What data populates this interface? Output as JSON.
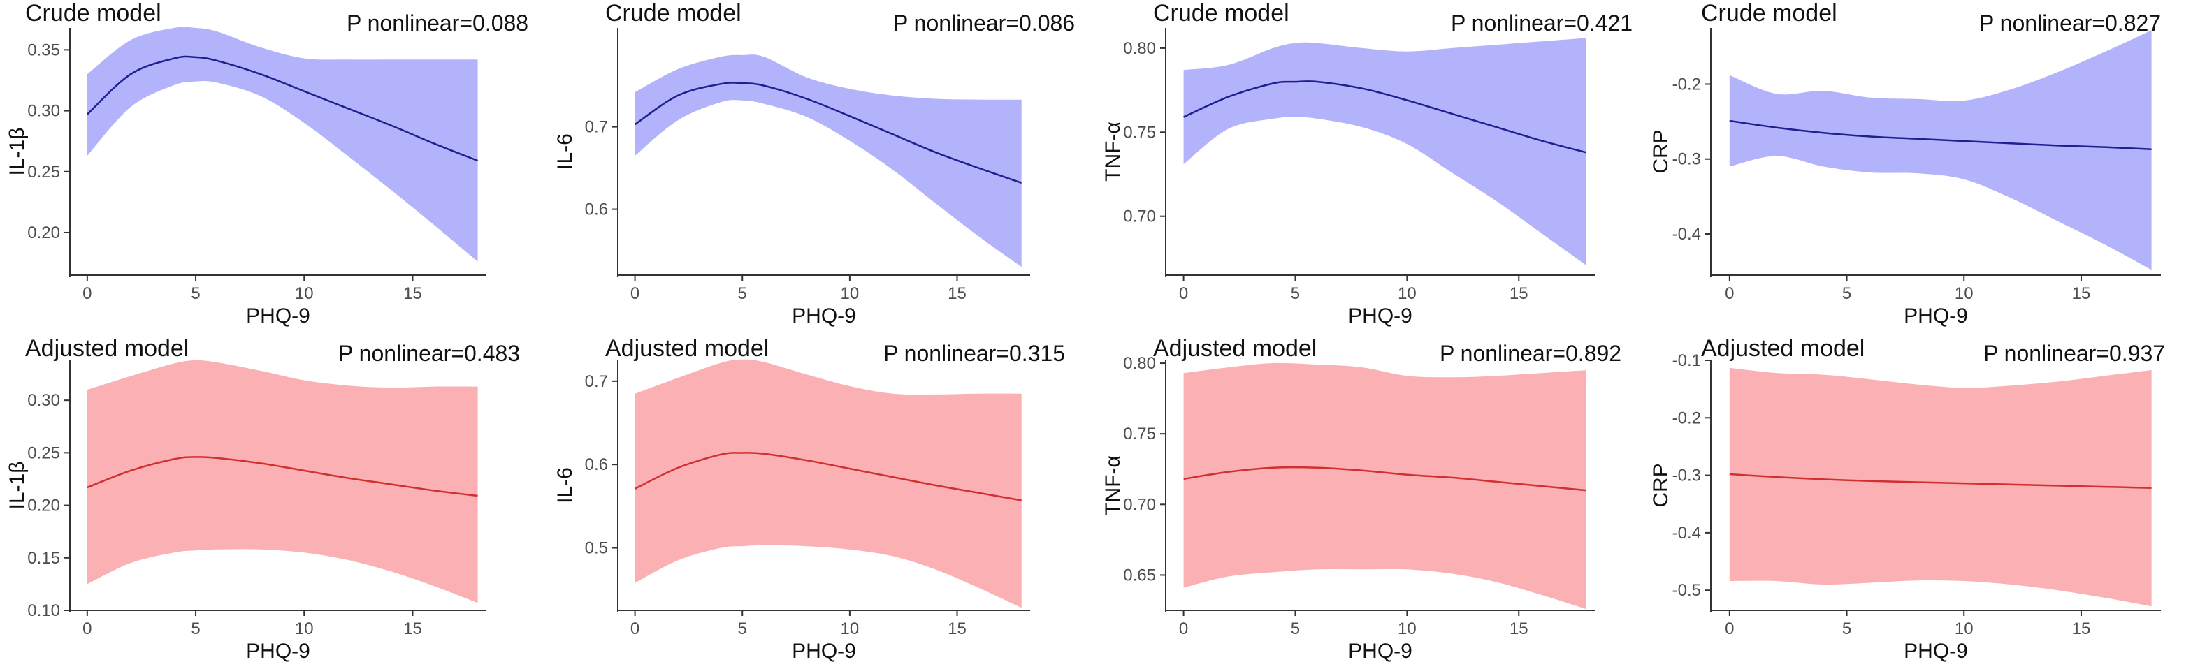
{
  "chart_data": [
    {
      "type": "line",
      "title": "Crude model",
      "annotation": "P nonlinear=0.088",
      "xlabel": "PHQ-9",
      "ylabel": "IL-1β",
      "xlim": [
        -0.8,
        18.4
      ],
      "ylim": [
        0.165,
        0.368
      ],
      "xticks": [
        0,
        5,
        10,
        15
      ],
      "xtick_labels": [
        "0",
        "5",
        "10",
        "15"
      ],
      "yticks": [
        0.2,
        0.25,
        0.3,
        0.35
      ],
      "ytick_labels": [
        "0.20",
        "0.25",
        "0.30",
        "0.35"
      ],
      "line_color": "#1f1f8f",
      "band_color": "#b3b3fb",
      "x": [
        0,
        2,
        4,
        5,
        6,
        8,
        10,
        12,
        14,
        16,
        18
      ],
      "y": [
        0.297,
        0.33,
        0.343,
        0.344,
        0.341,
        0.33,
        0.316,
        0.302,
        0.288,
        0.273,
        0.259
      ],
      "lower": [
        0.263,
        0.303,
        0.321,
        0.324,
        0.323,
        0.312,
        0.29,
        0.263,
        0.235,
        0.206,
        0.176
      ],
      "upper": [
        0.33,
        0.358,
        0.368,
        0.368,
        0.365,
        0.352,
        0.343,
        0.342,
        0.342,
        0.342,
        0.342
      ]
    },
    {
      "type": "line",
      "title": "Crude model",
      "annotation": "P nonlinear=0.086",
      "xlabel": "PHQ-9",
      "ylabel": "IL-6",
      "xlim": [
        -0.8,
        18.4
      ],
      "ylim": [
        0.52,
        0.82
      ],
      "xticks": [
        0,
        5,
        10,
        15
      ],
      "xtick_labels": [
        "0",
        "5",
        "10",
        "15"
      ],
      "yticks": [
        0.6,
        0.7
      ],
      "ytick_labels": [
        "0.6",
        "0.7"
      ],
      "line_color": "#1f1f8f",
      "band_color": "#b3b3fb",
      "x": [
        0,
        2,
        4,
        5,
        6,
        8,
        10,
        12,
        14,
        16,
        18
      ],
      "y": [
        0.703,
        0.738,
        0.752,
        0.753,
        0.75,
        0.734,
        0.713,
        0.691,
        0.669,
        0.65,
        0.632
      ],
      "lower": [
        0.665,
        0.708,
        0.73,
        0.732,
        0.728,
        0.712,
        0.683,
        0.648,
        0.607,
        0.567,
        0.53
      ],
      "upper": [
        0.742,
        0.77,
        0.785,
        0.787,
        0.785,
        0.76,
        0.746,
        0.738,
        0.734,
        0.733,
        0.733
      ]
    },
    {
      "type": "line",
      "title": "Crude model",
      "annotation": "P nonlinear=0.421",
      "xlabel": "PHQ-9",
      "ylabel": "TNF-α",
      "xlim": [
        -0.8,
        18.4
      ],
      "ylim": [
        0.665,
        0.812
      ],
      "xticks": [
        0,
        5,
        10,
        15
      ],
      "xtick_labels": [
        "0",
        "5",
        "10",
        "15"
      ],
      "yticks": [
        0.7,
        0.75,
        0.8
      ],
      "ytick_labels": [
        "0.70",
        "0.75",
        "0.80"
      ],
      "line_color": "#1f1f8f",
      "band_color": "#b3b3fb",
      "x": [
        0,
        2,
        4,
        5,
        6,
        8,
        10,
        12,
        14,
        16,
        18
      ],
      "y": [
        0.759,
        0.771,
        0.779,
        0.78,
        0.78,
        0.776,
        0.769,
        0.761,
        0.753,
        0.745,
        0.738
      ],
      "lower": [
        0.731,
        0.752,
        0.758,
        0.759,
        0.758,
        0.753,
        0.743,
        0.726,
        0.709,
        0.69,
        0.671
      ],
      "upper": [
        0.787,
        0.79,
        0.8,
        0.803,
        0.803,
        0.8,
        0.798,
        0.8,
        0.802,
        0.804,
        0.806
      ]
    },
    {
      "type": "line",
      "title": "Crude model",
      "annotation": "P nonlinear=0.827",
      "xlabel": "PHQ-9",
      "ylabel": "CRP",
      "xlim": [
        -0.8,
        18.4
      ],
      "ylim": [
        -0.455,
        -0.125
      ],
      "xticks": [
        0,
        5,
        10,
        15
      ],
      "xtick_labels": [
        "0",
        "5",
        "10",
        "15"
      ],
      "yticks": [
        -0.4,
        -0.3,
        -0.2
      ],
      "ytick_labels": [
        "-0.4",
        "-0.3",
        "-0.2"
      ],
      "line_color": "#1f1f8f",
      "band_color": "#b3b3fb",
      "x": [
        0,
        2,
        4,
        6,
        8,
        10,
        12,
        14,
        16,
        18
      ],
      "y": [
        -0.249,
        -0.258,
        -0.265,
        -0.27,
        -0.273,
        -0.276,
        -0.279,
        -0.282,
        -0.284,
        -0.287
      ],
      "lower": [
        -0.31,
        -0.296,
        -0.31,
        -0.318,
        -0.319,
        -0.327,
        -0.352,
        -0.383,
        -0.414,
        -0.448
      ],
      "upper": [
        -0.188,
        -0.213,
        -0.209,
        -0.218,
        -0.22,
        -0.222,
        -0.207,
        -0.184,
        -0.157,
        -0.128
      ]
    },
    {
      "type": "line",
      "title": "Adjusted model",
      "annotation": "P nonlinear=0.483",
      "xlabel": "PHQ-9",
      "ylabel": "IL-1β",
      "xlim": [
        -0.8,
        18.4
      ],
      "ylim": [
        0.1,
        0.338
      ],
      "xticks": [
        0,
        5,
        10,
        15
      ],
      "xtick_labels": [
        "0",
        "5",
        "10",
        "15"
      ],
      "yticks": [
        0.1,
        0.15,
        0.2,
        0.25,
        0.3
      ],
      "ytick_labels": [
        "0.10",
        "0.15",
        "0.20",
        "0.25",
        "0.30"
      ],
      "line_color": "#d03030",
      "band_color": "#fbb0b4",
      "x": [
        0,
        2,
        4,
        5,
        6,
        8,
        10,
        12,
        14,
        16,
        18
      ],
      "y": [
        0.217,
        0.233,
        0.244,
        0.246,
        0.245,
        0.24,
        0.233,
        0.226,
        0.22,
        0.214,
        0.209
      ],
      "lower": [
        0.125,
        0.145,
        0.155,
        0.157,
        0.158,
        0.158,
        0.155,
        0.148,
        0.137,
        0.123,
        0.107
      ],
      "upper": [
        0.31,
        0.323,
        0.335,
        0.338,
        0.336,
        0.328,
        0.319,
        0.314,
        0.312,
        0.313,
        0.313
      ]
    },
    {
      "type": "line",
      "title": "Adjusted model",
      "annotation": "P nonlinear=0.315",
      "xlabel": "PHQ-9",
      "ylabel": "IL-6",
      "xlim": [
        -0.8,
        18.4
      ],
      "ylim": [
        0.425,
        0.725
      ],
      "xticks": [
        0,
        5,
        10,
        15
      ],
      "xtick_labels": [
        "0",
        "5",
        "10",
        "15"
      ],
      "yticks": [
        0.5,
        0.6,
        0.7
      ],
      "ytick_labels": [
        "0.5",
        "0.6",
        "0.7"
      ],
      "line_color": "#d03030",
      "band_color": "#fbb0b4",
      "x": [
        0,
        2,
        4,
        5,
        6,
        8,
        10,
        12,
        14,
        16,
        18
      ],
      "y": [
        0.571,
        0.596,
        0.612,
        0.614,
        0.613,
        0.605,
        0.595,
        0.585,
        0.575,
        0.566,
        0.557
      ],
      "lower": [
        0.458,
        0.485,
        0.5,
        0.502,
        0.503,
        0.502,
        0.498,
        0.49,
        0.474,
        0.452,
        0.428
      ],
      "upper": [
        0.685,
        0.704,
        0.722,
        0.726,
        0.723,
        0.708,
        0.694,
        0.685,
        0.684,
        0.685,
        0.685
      ]
    },
    {
      "type": "line",
      "title": "Adjusted model",
      "annotation": "P nonlinear=0.892",
      "xlabel": "PHQ-9",
      "ylabel": "TNF-α",
      "xlim": [
        -0.8,
        18.4
      ],
      "ylim": [
        0.625,
        0.802
      ],
      "xticks": [
        0,
        5,
        10,
        15
      ],
      "xtick_labels": [
        "0",
        "5",
        "10",
        "15"
      ],
      "yticks": [
        0.65,
        0.7,
        0.75,
        0.8
      ],
      "ytick_labels": [
        "0.65",
        "0.70",
        "0.75",
        "0.80"
      ],
      "line_color": "#d03030",
      "band_color": "#fbb0b4",
      "x": [
        0,
        2,
        4,
        6,
        8,
        10,
        12,
        14,
        16,
        18
      ],
      "y": [
        0.718,
        0.723,
        0.726,
        0.726,
        0.724,
        0.721,
        0.719,
        0.716,
        0.713,
        0.71
      ],
      "lower": [
        0.641,
        0.649,
        0.652,
        0.654,
        0.654,
        0.654,
        0.651,
        0.645,
        0.636,
        0.626
      ],
      "upper": [
        0.793,
        0.797,
        0.8,
        0.799,
        0.797,
        0.791,
        0.79,
        0.791,
        0.793,
        0.795
      ]
    },
    {
      "type": "line",
      "title": "Adjusted model",
      "annotation": "P nonlinear=0.937",
      "xlabel": "PHQ-9",
      "ylabel": "CRP",
      "xlim": [
        -0.8,
        18.4
      ],
      "ylim": [
        -0.535,
        -0.1
      ],
      "xticks": [
        0,
        5,
        10,
        15
      ],
      "xtick_labels": [
        "0",
        "5",
        "10",
        "15"
      ],
      "yticks": [
        -0.5,
        -0.4,
        -0.3,
        -0.2,
        -0.1
      ],
      "ytick_labels": [
        "-0.5",
        "-0.4",
        "-0.3",
        "-0.2",
        "-0.1"
      ],
      "line_color": "#d03030",
      "band_color": "#fbb0b4",
      "x": [
        0,
        2,
        4,
        6,
        8,
        10,
        12,
        14,
        16,
        18
      ],
      "y": [
        -0.298,
        -0.303,
        -0.307,
        -0.31,
        -0.312,
        -0.314,
        -0.316,
        -0.318,
        -0.32,
        -0.322
      ],
      "lower": [
        -0.484,
        -0.484,
        -0.49,
        -0.487,
        -0.483,
        -0.484,
        -0.49,
        -0.5,
        -0.513,
        -0.528
      ],
      "upper": [
        -0.113,
        -0.122,
        -0.125,
        -0.133,
        -0.142,
        -0.148,
        -0.144,
        -0.137,
        -0.127,
        -0.117
      ]
    }
  ]
}
